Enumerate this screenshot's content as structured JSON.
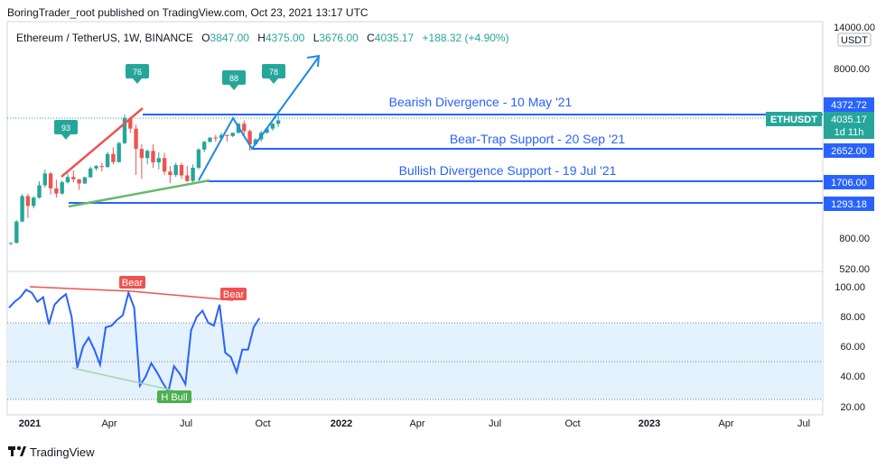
{
  "publish_line": "BoringTrader_root published on TradingView.com, Oct 23, 2021 13:17 UTC",
  "header": {
    "symbol": "Ethereum / TetherUS, 1W, BINANCE",
    "o_label": "O",
    "o": "3847.00",
    "h_label": "H",
    "h": "4375.00",
    "l_label": "L",
    "l": "3676.00",
    "c_label": "C",
    "c": "4035.17",
    "change": "+188.32 (+4.90%)"
  },
  "price_axis": {
    "top_label": "14000.00",
    "currency": "USDT",
    "ticks": [
      "8000.00",
      "800.00",
      "520.00"
    ]
  },
  "levels": [
    {
      "name": "Bearish Divergence - 10 May '21",
      "price": "4372.72"
    },
    {
      "name": "Bear-Trap Support - 20 Sep '21",
      "price": "2652.00"
    },
    {
      "name": "Bullish Divergence Support - 19 Jul '21",
      "price": "1706.00"
    },
    {
      "name": "",
      "price": "1293.18"
    }
  ],
  "last_price": {
    "ticker": "ETHUSDT",
    "price": "4035.17",
    "countdown": "1d 11h"
  },
  "osc_axis": {
    "ticks": [
      "100.00",
      "80.00",
      "60.00",
      "40.00",
      "20.00"
    ]
  },
  "osc_labels": {
    "bear": "Bear",
    "hbull": "H Bull"
  },
  "marker_values": [
    "93",
    "76",
    "88",
    "78"
  ],
  "time_axis": [
    "2021",
    "Apr",
    "Jul",
    "Oct",
    "2022",
    "Apr",
    "Jul",
    "Oct",
    "2023",
    "Apr",
    "Jul"
  ],
  "footer": {
    "brand": "TradingView"
  },
  "colors": {
    "up": "#26a69a",
    "down": "#ef5350",
    "level": "#2962ff",
    "trend": "#1e88e5",
    "bear": "#ef5350",
    "bull_line": "#4caf50",
    "band": "#e3f2fd"
  },
  "chart_data": {
    "type": "candlestick",
    "interval": "1W",
    "price_scale": "log",
    "candles_ohlc": [
      [
        737,
        750,
        720,
        745
      ],
      [
        745,
        1020,
        740,
        1000
      ],
      [
        1000,
        1460,
        990,
        1420
      ],
      [
        1420,
        1470,
        1050,
        1240
      ],
      [
        1240,
        1420,
        1200,
        1390
      ],
      [
        1390,
        1740,
        1370,
        1650
      ],
      [
        1650,
        2040,
        1600,
        1940
      ],
      [
        1940,
        1980,
        1450,
        1580
      ],
      [
        1580,
        1780,
        1390,
        1470
      ],
      [
        1470,
        1760,
        1450,
        1720
      ],
      [
        1720,
        1940,
        1690,
        1850
      ],
      [
        1850,
        2020,
        1720,
        1790
      ],
      [
        1790,
        1800,
        1550,
        1690
      ],
      [
        1690,
        1860,
        1680,
        1840
      ],
      [
        1840,
        2140,
        1830,
        2080
      ],
      [
        2080,
        2180,
        2020,
        2150
      ],
      [
        2150,
        2250,
        1990,
        2120
      ],
      [
        2120,
        2620,
        2100,
        2540
      ],
      [
        2540,
        2780,
        2200,
        2270
      ],
      [
        2270,
        3000,
        2260,
        2950
      ],
      [
        2950,
        4372,
        2900,
        4170
      ],
      [
        4170,
        4200,
        3400,
        3600
      ],
      [
        3600,
        3800,
        1900,
        2720
      ],
      [
        2720,
        2900,
        1800,
        2400
      ],
      [
        2400,
        2700,
        2200,
        2650
      ],
      [
        2650,
        2900,
        2100,
        2260
      ],
      [
        2260,
        2600,
        2050,
        2400
      ],
      [
        2400,
        2580,
        1900,
        1990
      ],
      [
        1990,
        2150,
        1700,
        1900
      ],
      [
        1900,
        2250,
        1850,
        2180
      ],
      [
        2180,
        2250,
        1800,
        1890
      ],
      [
        1890,
        2150,
        1720,
        1750
      ],
      [
        1750,
        2200,
        1706,
        2100
      ],
      [
        2100,
        2750,
        2050,
        2700
      ],
      [
        2700,
        3050,
        2600,
        3000
      ],
      [
        3000,
        3200,
        2980,
        3180
      ],
      [
        3180,
        3300,
        3000,
        3150
      ],
      [
        3150,
        3400,
        3050,
        3300
      ],
      [
        3300,
        3300,
        3000,
        3250
      ],
      [
        3250,
        3400,
        3200,
        3400
      ],
      [
        3400,
        3900,
        3350,
        3850
      ],
      [
        3850,
        4030,
        3300,
        3480
      ],
      [
        3480,
        3550,
        2652,
        2900
      ],
      [
        2900,
        3150,
        2880,
        3100
      ],
      [
        3100,
        3500,
        3000,
        3400
      ],
      [
        3400,
        3630,
        3350,
        3600
      ],
      [
        3600,
        3900,
        3500,
        3850
      ],
      [
        3847,
        4375,
        3676,
        4035.17
      ]
    ],
    "rsi": [
      86,
      90,
      93,
      98,
      96,
      90,
      93,
      75,
      88,
      92,
      95,
      80,
      46,
      60,
      66,
      58,
      48,
      73,
      74,
      78,
      81,
      96,
      86,
      34,
      40,
      49,
      43,
      36,
      30,
      47,
      42,
      35,
      71,
      80,
      84,
      76,
      74,
      88,
      56,
      53,
      43,
      58,
      58,
      73,
      79
    ],
    "horizontal_levels": [
      4372.72,
      2652.0,
      1706.0,
      1293.18
    ],
    "osc_band": [
      30,
      70
    ]
  }
}
